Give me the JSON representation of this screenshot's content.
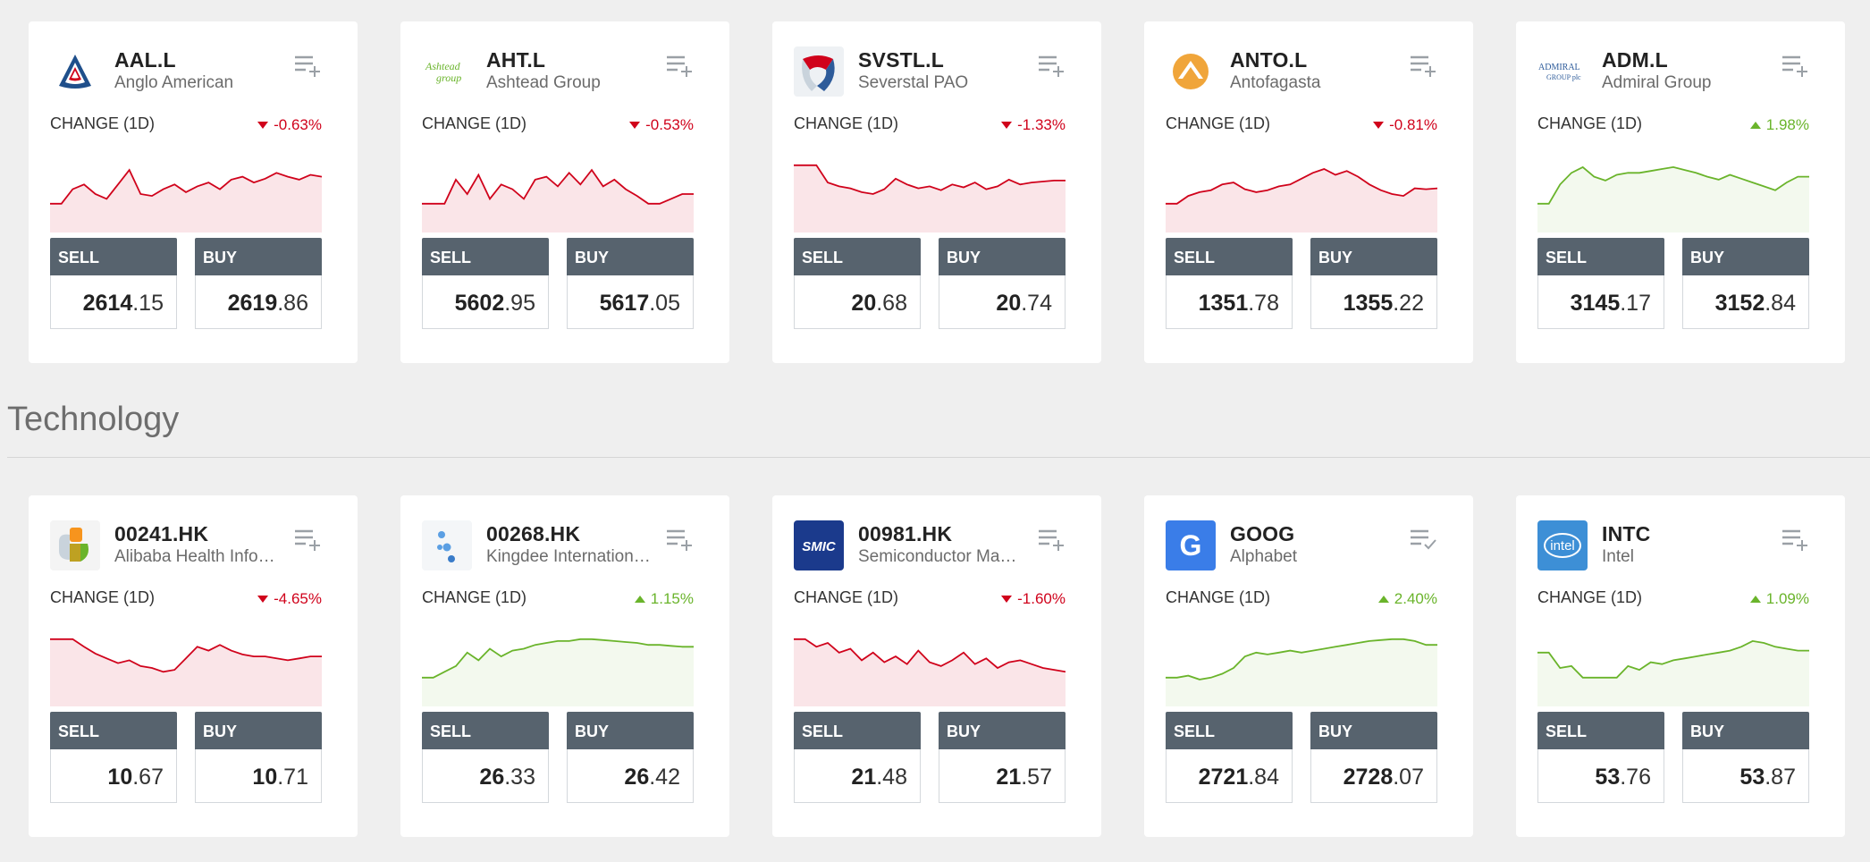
{
  "section": {
    "title": "Technology"
  },
  "common": {
    "change_label": "CHANGE (1D)",
    "sell_label": "SELL",
    "buy_label": "BUY"
  },
  "colors": {
    "positive": "#6ab42b",
    "negative": "#d0021b",
    "button": "#57636e"
  },
  "cards": [
    {
      "symbol": "AAL.L",
      "name": "Anglo American",
      "change": "-0.63%",
      "direction": "down",
      "sell_int": "2614",
      "sell_dec": ".15",
      "buy_int": "2619",
      "buy_dec": ".86",
      "logo": "anglo-american-logo",
      "watchlist": "add-icon",
      "spark": [
        30,
        30,
        45,
        50,
        40,
        35,
        50,
        65,
        40,
        38,
        45,
        50,
        42,
        48,
        52,
        45,
        55,
        58,
        52,
        56,
        62,
        58,
        55,
        60,
        58
      ]
    },
    {
      "symbol": "AHT.L",
      "name": "Ashtead Group",
      "change": "-0.53%",
      "direction": "down",
      "sell_int": "5602",
      "sell_dec": ".95",
      "buy_int": "5617",
      "buy_dec": ".05",
      "logo": "ashtead-logo",
      "watchlist": "add-icon",
      "spark": [
        30,
        30,
        30,
        55,
        40,
        60,
        35,
        50,
        45,
        35,
        55,
        58,
        48,
        62,
        50,
        65,
        48,
        55,
        45,
        38,
        30,
        30,
        35,
        40,
        40
      ]
    },
    {
      "symbol": "SVSTL.L",
      "name": "Severstal PAO",
      "change": "-1.33%",
      "direction": "down",
      "sell_int": "20",
      "sell_dec": ".68",
      "buy_int": "20",
      "buy_dec": ".74",
      "logo": "severstal-logo",
      "watchlist": "add-icon",
      "spark": [
        70,
        70,
        70,
        52,
        48,
        46,
        42,
        40,
        45,
        56,
        50,
        46,
        48,
        44,
        50,
        47,
        52,
        45,
        48,
        55,
        50,
        52,
        53,
        54,
        54
      ]
    },
    {
      "symbol": "ANTO.L",
      "name": "Antofagasta",
      "change": "-0.81%",
      "direction": "down",
      "sell_int": "1351",
      "sell_dec": ".78",
      "buy_int": "1355",
      "buy_dec": ".22",
      "logo": "antofagasta-logo",
      "watchlist": "add-icon",
      "spark": [
        30,
        30,
        38,
        42,
        44,
        50,
        52,
        45,
        42,
        44,
        48,
        50,
        56,
        62,
        66,
        60,
        64,
        58,
        50,
        44,
        40,
        38,
        46,
        45,
        46
      ]
    },
    {
      "symbol": "ADM.L",
      "name": "Admiral Group",
      "change": "1.98%",
      "direction": "up",
      "sell_int": "3145",
      "sell_dec": ".17",
      "buy_int": "3152",
      "buy_dec": ".84",
      "logo": "admiral-logo",
      "watchlist": "add-icon",
      "spark": [
        30,
        30,
        50,
        62,
        68,
        58,
        54,
        60,
        62,
        62,
        64,
        66,
        68,
        65,
        62,
        58,
        55,
        60,
        56,
        52,
        48,
        44,
        52,
        58,
        58
      ]
    },
    {
      "symbol": "00241.HK",
      "name": "Alibaba Health Information Technology",
      "change": "-4.65%",
      "direction": "down",
      "sell_int": "10",
      "sell_dec": ".67",
      "buy_int": "10",
      "buy_dec": ".71",
      "logo": "alibaba-health-logo",
      "watchlist": "add-icon",
      "spark": [
        70,
        70,
        70,
        62,
        55,
        50,
        45,
        48,
        42,
        40,
        36,
        38,
        50,
        62,
        58,
        64,
        58,
        54,
        52,
        52,
        50,
        48,
        50,
        52,
        52
      ]
    },
    {
      "symbol": "00268.HK",
      "name": "Kingdee International Software",
      "change": "1.15%",
      "direction": "up",
      "sell_int": "26",
      "sell_dec": ".33",
      "buy_int": "26",
      "buy_dec": ".42",
      "logo": "kingdee-logo",
      "watchlist": "add-icon",
      "spark": [
        30,
        30,
        36,
        42,
        56,
        48,
        60,
        52,
        58,
        60,
        64,
        66,
        68,
        68,
        70,
        70,
        69,
        68,
        67,
        66,
        64,
        64,
        63,
        62,
        62
      ]
    },
    {
      "symbol": "00981.HK",
      "name": "Semiconductor Manufacturing International",
      "change": "-1.60%",
      "direction": "down",
      "sell_int": "21",
      "sell_dec": ".48",
      "buy_int": "21",
      "buy_dec": ".57",
      "logo": "smic-logo",
      "watchlist": "add-icon",
      "spark": [
        70,
        70,
        62,
        66,
        56,
        60,
        48,
        56,
        46,
        52,
        44,
        58,
        46,
        42,
        48,
        56,
        44,
        50,
        40,
        46,
        48,
        44,
        40,
        38,
        36
      ]
    },
    {
      "symbol": "GOOG",
      "name": "Alphabet",
      "change": "2.40%",
      "direction": "up",
      "sell_int": "2721",
      "sell_dec": ".84",
      "buy_int": "2728",
      "buy_dec": ".07",
      "logo": "google-logo",
      "watchlist": "added-icon",
      "spark": [
        30,
        30,
        32,
        28,
        30,
        34,
        40,
        52,
        56,
        54,
        56,
        58,
        56,
        58,
        60,
        62,
        64,
        66,
        68,
        69,
        70,
        70,
        68,
        64,
        64
      ]
    },
    {
      "symbol": "INTC",
      "name": "Intel",
      "change": "1.09%",
      "direction": "up",
      "sell_int": "53",
      "sell_dec": ".76",
      "buy_int": "53",
      "buy_dec": ".87",
      "logo": "intel-logo",
      "watchlist": "add-icon",
      "spark": [
        56,
        56,
        40,
        42,
        30,
        30,
        30,
        30,
        42,
        38,
        46,
        44,
        48,
        50,
        52,
        54,
        56,
        58,
        62,
        68,
        66,
        62,
        60,
        58,
        58
      ]
    }
  ]
}
